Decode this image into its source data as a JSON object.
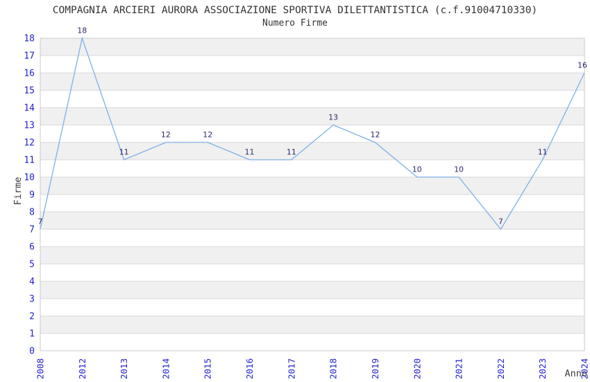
{
  "chart_data": {
    "type": "line",
    "title": "COMPAGNIA ARCIERI AURORA ASSOCIAZIONE SPORTIVA DILETTANTISTICA (c.f.91004710330)",
    "subtitle": "Numero Firme",
    "xlabel": "Anno",
    "ylabel": "Firme",
    "categories": [
      "2008",
      "2012",
      "2013",
      "2014",
      "2015",
      "2016",
      "2017",
      "2018",
      "2019",
      "2020",
      "2021",
      "2022",
      "2023",
      "2024"
    ],
    "values": [
      7,
      18,
      11,
      12,
      12,
      11,
      11,
      13,
      12,
      10,
      10,
      7,
      11,
      16
    ],
    "ylim": [
      0,
      18
    ],
    "y_tick_step": 1,
    "grid": true,
    "legend": "none",
    "x_tick_rotation": -90,
    "colors": {
      "title": "#333333",
      "axis_title": "#404040",
      "tick_label": "#2222cc",
      "data_label": "#28286e",
      "line": "#7cb0e8",
      "grid_line": "#d9d9d9",
      "plot_border": "#c9c9c9",
      "band_even": "#ffffff",
      "band_odd": "#f0f0f0",
      "background": "#ffffff"
    }
  }
}
